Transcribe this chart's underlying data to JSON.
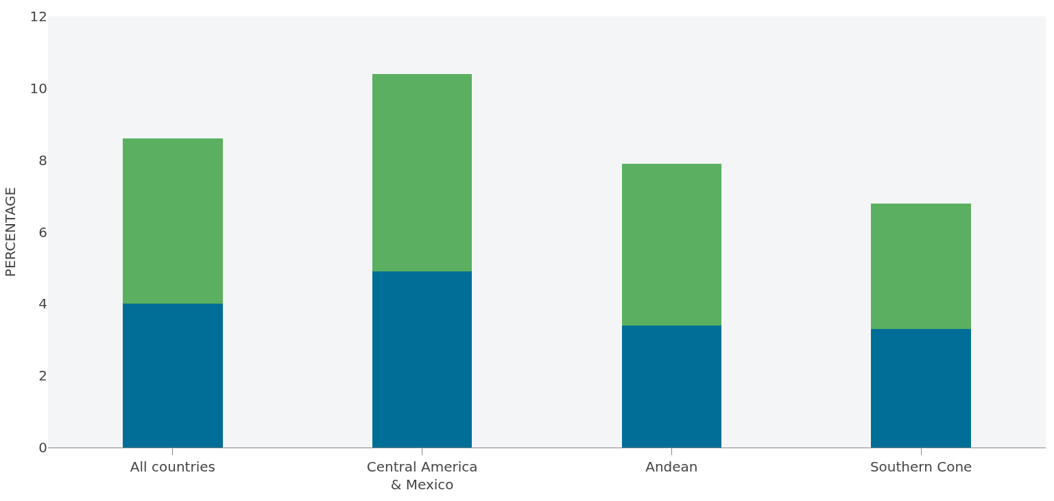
{
  "chart_data": {
    "type": "bar",
    "stacked": true,
    "ylabel": "PERCENTAGE",
    "categories": [
      "All countries",
      "Central America\n& Mexico",
      "Andean",
      "Southern Cone"
    ],
    "series": [
      {
        "color": "#006e96",
        "values": [
          4.0,
          4.9,
          3.4,
          3.3
        ]
      },
      {
        "color": "#5ab060",
        "values": [
          4.6,
          5.5,
          4.5,
          3.5
        ]
      }
    ],
    "ylim": [
      0,
      12
    ],
    "yticks": [
      0,
      2,
      4,
      6,
      8,
      10,
      12
    ],
    "grid": false,
    "legend": false
  }
}
